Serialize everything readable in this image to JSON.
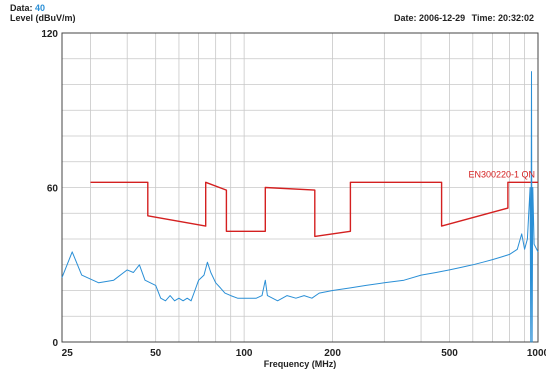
{
  "header": {
    "data_label": "Data:",
    "data_value": "40",
    "date_label": "Date:",
    "date_value": "2006-12-29",
    "time_label": "Time:",
    "time_value": "20:32:02"
  },
  "colors": {
    "limit": "#d42020",
    "trace": "#2a8fd6",
    "grid": "#c8c8c8",
    "frame": "#444444"
  },
  "chart_data": {
    "type": "line",
    "ylabel": "Level (dBuV/m)",
    "xlabel": "Frequency (MHz)",
    "x_scale": "log",
    "xlim": [
      24,
      1000
    ],
    "ylim": [
      0,
      120
    ],
    "y_ticks": [
      0,
      60,
      120
    ],
    "x_ticks": [
      25,
      50,
      100,
      200,
      500,
      1000
    ],
    "grid": true,
    "series": [
      {
        "name": "EN300220-1 QN",
        "color": "#d42020",
        "points": [
          [
            30,
            62
          ],
          [
            47,
            62
          ],
          [
            47,
            49
          ],
          [
            74,
            45
          ],
          [
            74,
            62
          ],
          [
            87,
            59
          ],
          [
            87,
            43
          ],
          [
            118,
            43
          ],
          [
            118,
            60
          ],
          [
            174,
            59
          ],
          [
            174,
            41
          ],
          [
            230,
            43
          ],
          [
            230,
            62
          ],
          [
            470,
            62
          ],
          [
            470,
            45
          ],
          [
            790,
            52
          ],
          [
            790,
            62
          ],
          [
            1000,
            62
          ]
        ]
      },
      {
        "color": "#2a8fd6",
        "points": [
          [
            24,
            25
          ],
          [
            26,
            35
          ],
          [
            28,
            26
          ],
          [
            32,
            23
          ],
          [
            36,
            24
          ],
          [
            40,
            28
          ],
          [
            42,
            27
          ],
          [
            44,
            30
          ],
          [
            46,
            24
          ],
          [
            50,
            22
          ],
          [
            52,
            17
          ],
          [
            54,
            16
          ],
          [
            56,
            18
          ],
          [
            58,
            16
          ],
          [
            60,
            17
          ],
          [
            62,
            16
          ],
          [
            64,
            17
          ],
          [
            66,
            16
          ],
          [
            68,
            20
          ],
          [
            70,
            24
          ],
          [
            73,
            26
          ],
          [
            75,
            31
          ],
          [
            77,
            27
          ],
          [
            80,
            23
          ],
          [
            83,
            21
          ],
          [
            86,
            19
          ],
          [
            90,
            18
          ],
          [
            95,
            17
          ],
          [
            100,
            17
          ],
          [
            110,
            17
          ],
          [
            115,
            18
          ],
          [
            118,
            24
          ],
          [
            120,
            18
          ],
          [
            130,
            16
          ],
          [
            140,
            18
          ],
          [
            150,
            17
          ],
          [
            160,
            18
          ],
          [
            170,
            17
          ],
          [
            180,
            19
          ],
          [
            200,
            20
          ],
          [
            230,
            21
          ],
          [
            260,
            22
          ],
          [
            300,
            23
          ],
          [
            350,
            24
          ],
          [
            400,
            26
          ],
          [
            450,
            27
          ],
          [
            500,
            28
          ],
          [
            550,
            29
          ],
          [
            600,
            30
          ],
          [
            650,
            31
          ],
          [
            700,
            32
          ],
          [
            750,
            33
          ],
          [
            800,
            34
          ],
          [
            850,
            36
          ],
          [
            880,
            42
          ],
          [
            900,
            36
          ],
          [
            920,
            40
          ],
          [
            940,
            60
          ],
          [
            945,
            0
          ],
          [
            950,
            105
          ],
          [
            955,
            0
          ],
          [
            960,
            60
          ],
          [
            970,
            38
          ],
          [
            1000,
            35
          ]
        ]
      }
    ]
  }
}
